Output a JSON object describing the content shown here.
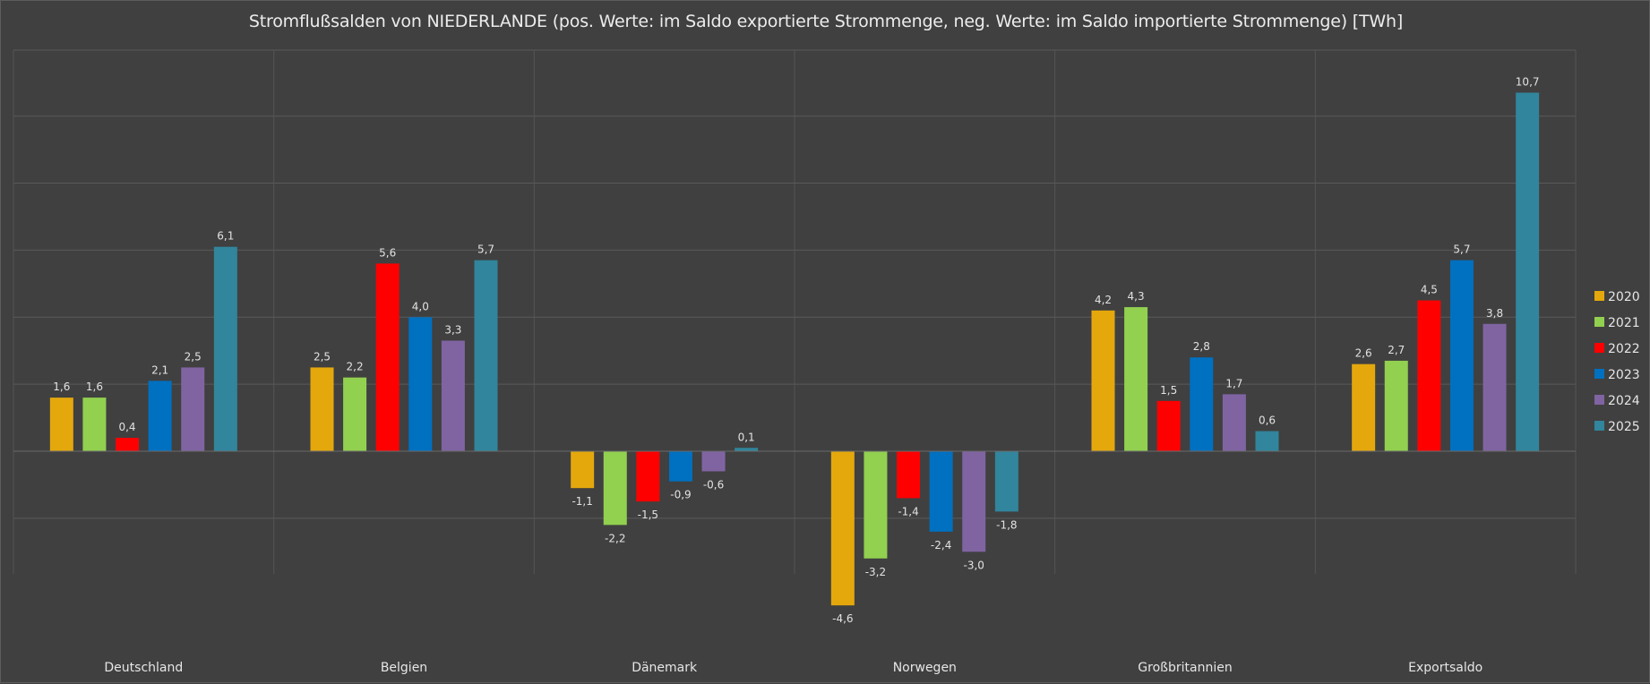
{
  "chart_data": {
    "type": "bar",
    "title": "Stromflußsalden von NIEDERLANDE (pos. Werte: im Saldo exportierte Strommenge, neg. Werte: im Saldo importierte Strommenge) [TWh]",
    "xlabel": "",
    "ylabel": "",
    "ylim": [
      -4,
      12
    ],
    "grid": true,
    "legend_position": "right",
    "categories": [
      "Deutschland",
      "Belgien",
      "Dänemark",
      "Norwegen",
      "Großbritannien",
      "Exportsaldo"
    ],
    "series": [
      {
        "name": "2020",
        "color": "#e4a80d",
        "values": [
          1.6,
          2.5,
          -1.1,
          -4.6,
          4.2,
          2.6
        ],
        "labels": [
          "1,6",
          "2,5",
          "-1,1",
          "-4,6",
          "4,2",
          "2,6"
        ]
      },
      {
        "name": "2021",
        "color": "#92d050",
        "values": [
          1.6,
          2.2,
          -2.2,
          -3.2,
          4.3,
          2.7
        ],
        "labels": [
          "1,6",
          "2,2",
          "-2,2",
          "-3,2",
          "4,3",
          "2,7"
        ]
      },
      {
        "name": "2022",
        "color": "#ff0000",
        "values": [
          0.4,
          5.6,
          -1.5,
          -1.4,
          1.5,
          4.5
        ],
        "labels": [
          "0,4",
          "5,6",
          "-1,5",
          "-1,4",
          "1,5",
          "4,5"
        ]
      },
      {
        "name": "2023",
        "color": "#0070c0",
        "values": [
          2.1,
          4.0,
          -0.9,
          -2.4,
          2.8,
          5.7
        ],
        "labels": [
          "2,1",
          "4,0",
          "-0,9",
          "-2,4",
          "2,8",
          "5,7"
        ]
      },
      {
        "name": "2024",
        "color": "#8064a2",
        "values": [
          2.5,
          3.3,
          -0.6,
          -3.0,
          1.7,
          3.8
        ],
        "labels": [
          "2,5",
          "3,3",
          "-0,6",
          "-3,0",
          "1,7",
          "3,8"
        ]
      },
      {
        "name": "2025",
        "color": "#31859c",
        "values": [
          6.1,
          5.7,
          0.1,
          -1.8,
          0.6,
          10.7
        ],
        "labels": [
          "6,1",
          "5,7",
          "0,1",
          "-1,8",
          "0,6",
          "10,7"
        ]
      }
    ]
  }
}
